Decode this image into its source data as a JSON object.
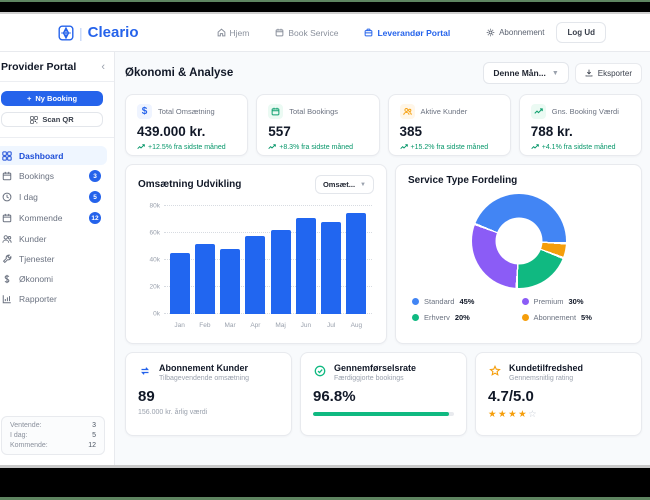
{
  "navbar": {
    "brand": "Cleario",
    "items": [
      {
        "label": "Hjem",
        "icon": "home-icon",
        "active": false
      },
      {
        "label": "Book Service",
        "icon": "calendar-icon",
        "active": false
      },
      {
        "label": "Leverandør Portal",
        "icon": "briefcase-icon",
        "active": true
      }
    ],
    "settings_label": "Abonnement",
    "logout_label": "Log Ud"
  },
  "sidebar": {
    "title": "Provider Portal",
    "collapse_glyph": "‹",
    "new_booking_label": "Ny Booking",
    "scan_qr_label": "Scan QR",
    "items": [
      {
        "label": "Dashboard",
        "icon": "grid-icon",
        "active": true
      },
      {
        "label": "Bookings",
        "icon": "calendar-icon",
        "badge": "3"
      },
      {
        "label": "I dag",
        "icon": "clock-icon",
        "badge": "5"
      },
      {
        "label": "Kommende",
        "icon": "calendar-icon",
        "badge": "12"
      },
      {
        "label": "Kunder",
        "icon": "users-icon"
      },
      {
        "label": "Tjenester",
        "icon": "wrench-icon"
      },
      {
        "label": "Økonomi",
        "icon": "dollar-icon"
      },
      {
        "label": "Rapporter",
        "icon": "chart-icon"
      }
    ],
    "summary": [
      {
        "label": "Ventende:",
        "value": "3"
      },
      {
        "label": "I dag:",
        "value": "5"
      },
      {
        "label": "Kommende:",
        "value": "12"
      }
    ]
  },
  "header": {
    "title": "Økonomi & Analyse",
    "period_selector": "Denne Mån...",
    "export_label": "Eksporter"
  },
  "stats": [
    {
      "label": "Total Omsætning",
      "value": "439.000 kr.",
      "change": "+12.5% fra sidste måned",
      "icon": "dollar-icon",
      "accent": "#2563eb"
    },
    {
      "label": "Total Bookings",
      "value": "557",
      "change": "+8.3% fra sidste måned",
      "icon": "calendar-icon",
      "accent": "#10b981"
    },
    {
      "label": "Aktive Kunder",
      "value": "385",
      "change": "+15.2% fra sidste måned",
      "icon": "users-icon",
      "accent": "#f59e0b"
    },
    {
      "label": "Gns. Booking Værdi",
      "value": "788 kr.",
      "change": "+4.1% fra sidste måned",
      "icon": "trend-up-icon",
      "accent": "#10b981"
    }
  ],
  "chart_data": [
    {
      "type": "bar",
      "title": "Omsætning Udvikling",
      "selector_value": "Omsæt...",
      "categories": [
        "Jan",
        "Feb",
        "Mar",
        "Apr",
        "Maj",
        "Jun",
        "Jul",
        "Aug"
      ],
      "values": [
        45000,
        52000,
        48000,
        58000,
        62000,
        71000,
        68000,
        75000
      ],
      "ylim": [
        0,
        80000
      ],
      "yticks": [
        "0k",
        "20k",
        "40k",
        "60k",
        "80k"
      ],
      "bar_color": "#2166f0",
      "grid": true,
      "legend_position": "none",
      "xlabel": "",
      "ylabel": ""
    },
    {
      "type": "pie",
      "title": "Service Type Fordeling",
      "donut": true,
      "start_angle_deg": 93,
      "slices": [
        {
          "label": "Standard",
          "value": 45,
          "pct_label": "45%",
          "color": "#4285f4"
        },
        {
          "label": "Premium",
          "value": 30,
          "pct_label": "30%",
          "color": "#8b5cf6"
        },
        {
          "label": "Erhverv",
          "value": 20,
          "pct_label": "20%",
          "color": "#10b981"
        },
        {
          "label": "Abonnement",
          "value": 5,
          "pct_label": "5%",
          "color": "#f59e0b"
        }
      ],
      "legend_position": "bottom"
    }
  ],
  "bottom_cards": {
    "subscribers": {
      "title": "Abonnement Kunder",
      "subtitle": "Tilbagevendende omsætning",
      "value": "89",
      "footnote": "156.000 kr. årlig værdi",
      "icon": "repeat-icon",
      "accent": "#2563eb"
    },
    "completion": {
      "title": "Gennemførselsrate",
      "subtitle": "Færdiggjorte bookings",
      "value": "96.8%",
      "progress_pct": 96.8,
      "icon": "check-circle-icon",
      "accent": "#10b981"
    },
    "satisfaction": {
      "title": "Kundetilfredshed",
      "subtitle": "Gennemsnitlig rating",
      "value": "4.7/5.0",
      "rating": 4.7,
      "rating_max": 5,
      "icon": "star-icon",
      "accent": "#f59e0b"
    }
  }
}
